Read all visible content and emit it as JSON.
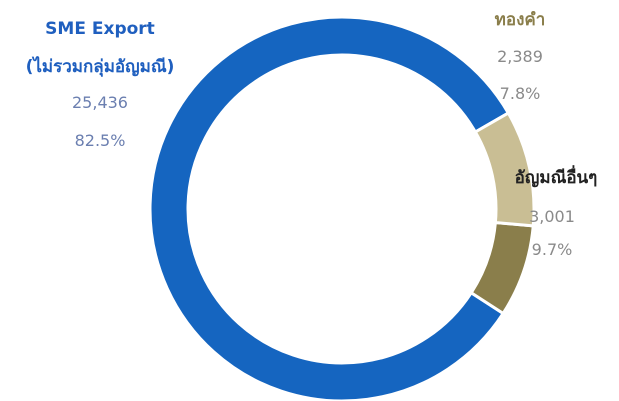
{
  "chart_data": {
    "type": "pie",
    "donut": true,
    "title": "",
    "slices": [
      {
        "name_lines": [
          "SME Export",
          "(ไม่รวมกลุ่มอัญมณี)"
        ],
        "value": 25436,
        "value_label": "25,436",
        "percent": 82.5,
        "percent_label": "82.5%",
        "color": "#1565C0",
        "label_color": "#1f5fbf"
      },
      {
        "name_lines": [
          "ทองคำ"
        ],
        "value": 2389,
        "value_label": "2,389",
        "percent": 7.8,
        "percent_label": "7.8%",
        "color": "#8A7E4B",
        "label_color": "#8a7e4b"
      },
      {
        "name_lines": [
          "อัญมณีอื่นๆ"
        ],
        "value": 3001,
        "value_label": "3,001",
        "percent": 9.7,
        "percent_label": "9.7%",
        "color": "#C9BE94",
        "label_color": "#222222"
      }
    ],
    "legend": "none",
    "start_angle_deg": 30,
    "direction": "counterclockwise"
  }
}
